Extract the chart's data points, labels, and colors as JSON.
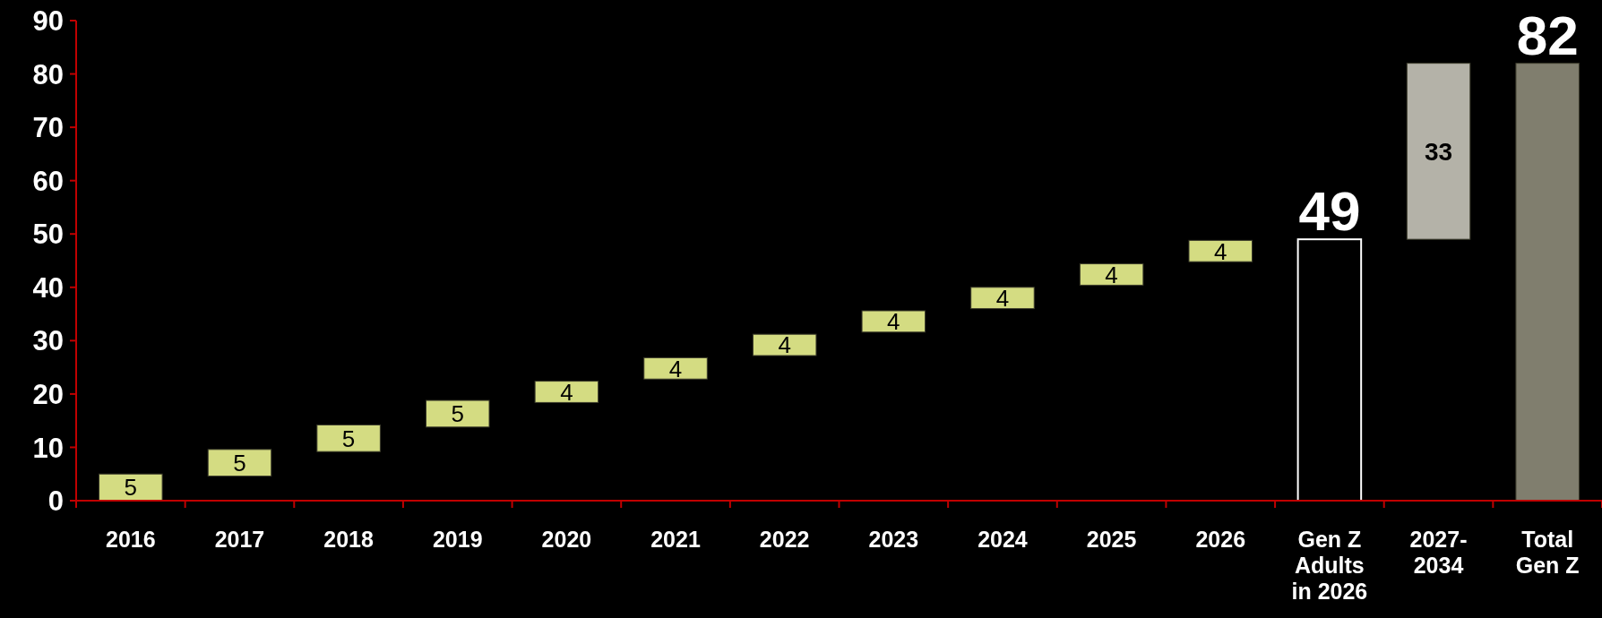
{
  "chart_data": {
    "type": "bar",
    "categories": [
      "2016",
      "2017",
      "2018",
      "2019",
      "2020",
      "2021",
      "2022",
      "2023",
      "2024",
      "2025",
      "2026",
      "Gen Z\nAdults\nin 2026",
      "2027-\n2034",
      "Total\nGen Z"
    ],
    "values": [
      5,
      5,
      5,
      5,
      4,
      4,
      4,
      4,
      4,
      4,
      4,
      49,
      33,
      82
    ],
    "base": [
      0,
      4.6,
      9.2,
      13.8,
      18.4,
      22.8,
      27.2,
      31.6,
      36,
      40.4,
      44.8,
      0,
      49,
      0
    ],
    "colors": [
      "#d4dc82",
      "#d4dc82",
      "#d4dc82",
      "#d4dc82",
      "#d4dc82",
      "#d4dc82",
      "#d4dc82",
      "#d4dc82",
      "#d4dc82",
      "#d4dc82",
      "#d4dc82",
      "#000000",
      "#b4b2a8",
      "#807e6e"
    ],
    "data_labels": true,
    "ylim": [
      0,
      90
    ],
    "yticks": [
      0,
      10,
      20,
      30,
      40,
      50,
      60,
      70,
      80,
      90
    ],
    "grid": false
  }
}
